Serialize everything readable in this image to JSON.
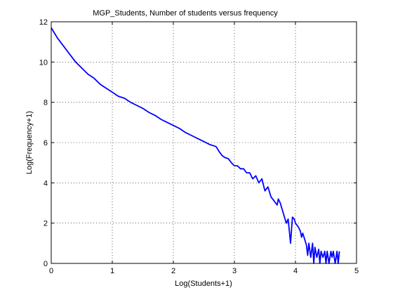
{
  "chart_data": {
    "type": "line",
    "title": "MGP_Students, Number of students versus frequency",
    "xlabel": "Log(Students+1)",
    "ylabel": "Log(Frequency+1)",
    "xlim": [
      0,
      5
    ],
    "ylim": [
      0,
      12
    ],
    "xticks": [
      "0",
      "1",
      "2",
      "3",
      "4",
      "5"
    ],
    "yticks": [
      "0",
      "2",
      "4",
      "6",
      "8",
      "10",
      "12"
    ],
    "grid": true,
    "series_color": "#0000ff",
    "series": [
      {
        "x": [
          0.0,
          0.1,
          0.2,
          0.3,
          0.4,
          0.5,
          0.6,
          0.7,
          0.8,
          0.9,
          1.0,
          1.1,
          1.2,
          1.3,
          1.4,
          1.5,
          1.6,
          1.7,
          1.8,
          1.9,
          2.0,
          2.1,
          2.2,
          2.3,
          2.4,
          2.5,
          2.6,
          2.7,
          2.75,
          2.8,
          2.85,
          2.9,
          2.95,
          3.0,
          3.05,
          3.1,
          3.15,
          3.2,
          3.25,
          3.3,
          3.35,
          3.4,
          3.45,
          3.5,
          3.55,
          3.6,
          3.65,
          3.7,
          3.72,
          3.75,
          3.8,
          3.85,
          3.88,
          3.92,
          3.95,
          3.98,
          4.0,
          4.05,
          4.08,
          4.1,
          4.12,
          4.15,
          4.18,
          4.2,
          4.22,
          4.25,
          4.28,
          4.3,
          4.32,
          4.35,
          4.38,
          4.4,
          4.42,
          4.45,
          4.48,
          4.5,
          4.52,
          4.55,
          4.58,
          4.6,
          4.62,
          4.65,
          4.68,
          4.7,
          4.72
        ],
        "y": [
          11.7,
          11.2,
          10.8,
          10.4,
          10.0,
          9.7,
          9.4,
          9.2,
          8.9,
          8.7,
          8.5,
          8.3,
          8.2,
          8.0,
          7.85,
          7.7,
          7.5,
          7.35,
          7.15,
          7.0,
          6.85,
          6.7,
          6.5,
          6.35,
          6.2,
          6.05,
          5.9,
          5.8,
          5.55,
          5.35,
          5.25,
          5.2,
          5.0,
          4.85,
          4.85,
          4.7,
          4.7,
          4.5,
          4.5,
          4.2,
          4.35,
          4.0,
          4.2,
          3.6,
          3.8,
          3.3,
          3.1,
          2.9,
          3.2,
          3.0,
          2.5,
          2.0,
          2.2,
          1.0,
          2.3,
          2.2,
          2.0,
          1.8,
          1.6,
          1.3,
          1.5,
          1.2,
          0.9,
          0.4,
          1.0,
          0.3,
          1.0,
          0.0,
          0.8,
          0.3,
          0.7,
          0.0,
          0.6,
          0.3,
          0.6,
          0.0,
          0.6,
          0.0,
          0.6,
          0.3,
          0.6,
          0.0,
          0.6,
          0.0,
          0.6
        ]
      }
    ]
  }
}
